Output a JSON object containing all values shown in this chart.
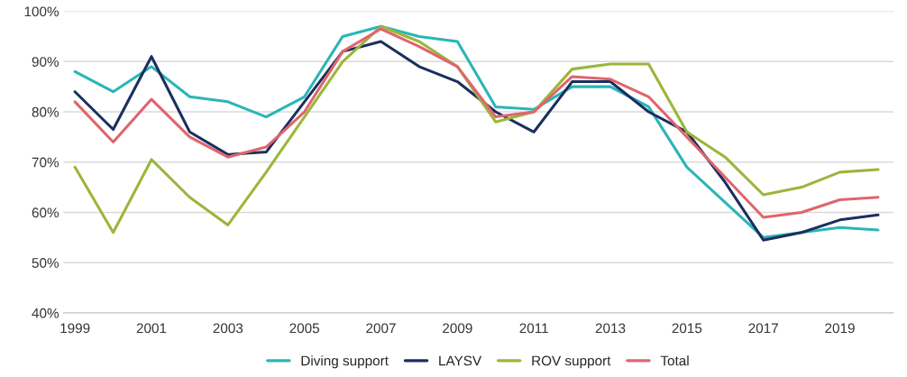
{
  "chart_data": {
    "type": "line",
    "x": [
      1999,
      2000,
      2001,
      2002,
      2003,
      2004,
      2005,
      2006,
      2007,
      2008,
      2009,
      2010,
      2011,
      2012,
      2013,
      2014,
      2015,
      2016,
      2017,
      2018,
      2019,
      2020
    ],
    "series": [
      {
        "name": "Diving support",
        "color": "#2bb5b8",
        "values": [
          88,
          84,
          89,
          83,
          82,
          79,
          83,
          95,
          97,
          95,
          94,
          81,
          80.5,
          85,
          85,
          81,
          69,
          62,
          55,
          56,
          57,
          56.5
        ]
      },
      {
        "name": "LAYSV",
        "color": "#1b2f5e",
        "values": [
          84,
          76.5,
          91,
          76,
          71.5,
          72,
          82,
          92,
          94,
          89,
          86,
          80,
          76,
          86,
          86,
          80,
          76,
          66,
          54.5,
          56,
          58.5,
          59.5
        ]
      },
      {
        "name": "ROV support",
        "color": "#9bb63a",
        "values": [
          69,
          56,
          70.5,
          63,
          57.5,
          68,
          79,
          90,
          97,
          94,
          89,
          78,
          80,
          88.5,
          89.5,
          89.5,
          76,
          71,
          63.5,
          65,
          68,
          68.5
        ]
      },
      {
        "name": "Total",
        "color": "#e0646e",
        "values": [
          82,
          74,
          82.5,
          75,
          71,
          73,
          80,
          92,
          96.5,
          93,
          89,
          79,
          80,
          87,
          86.5,
          83,
          75,
          67,
          59,
          60,
          62.5,
          63
        ]
      }
    ],
    "xlim": [
      1998.7,
      2020.4
    ],
    "xticks": [
      1999,
      2001,
      2003,
      2005,
      2007,
      2009,
      2011,
      2013,
      2015,
      2017,
      2019
    ],
    "ylim": [
      40,
      100
    ],
    "yticks": [
      {
        "value": 40,
        "label": "40%"
      },
      {
        "value": 50,
        "label": "50%"
      },
      {
        "value": 60,
        "label": "60%"
      },
      {
        "value": 70,
        "label": "70%"
      },
      {
        "value": 80,
        "label": "80%"
      },
      {
        "value": 90,
        "label": "90%"
      },
      {
        "value": 100,
        "label": "100%"
      }
    ],
    "grid": "y",
    "legend": "bottom",
    "marker": "none",
    "line_style": "solid"
  }
}
